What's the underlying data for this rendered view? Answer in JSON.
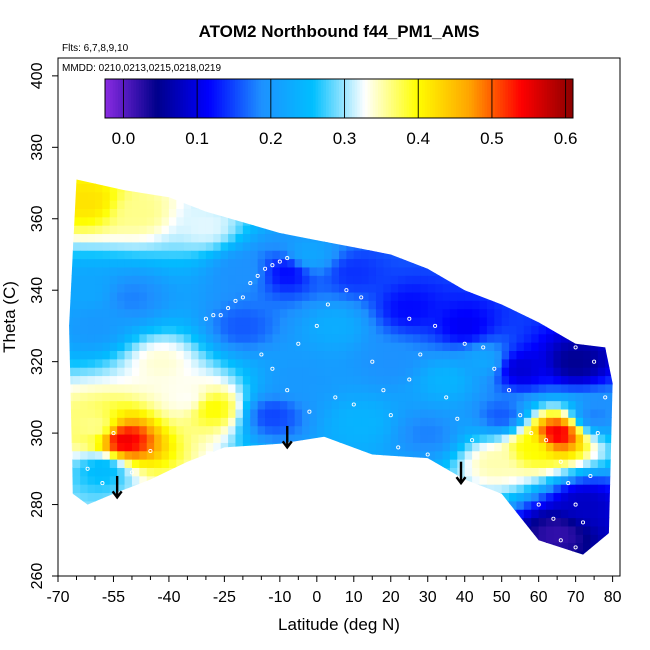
{
  "chart_data": {
    "type": "heatmap",
    "title": "ATOM2 Northbound f44_PM1_AMS",
    "annotations": [
      "Flts: 6,7,8,9,10",
      "MMDD: 0210,0213,0215,0218,0219"
    ],
    "xlabel": "Latitude (deg N)",
    "ylabel": "Theta (C)",
    "xlim": [
      -70,
      82
    ],
    "ylim": [
      260,
      405
    ],
    "x_ticks": [
      "-70",
      "-55",
      "-40",
      "-25",
      "-10",
      "0",
      "10",
      "20",
      "30",
      "40",
      "50",
      "60",
      "70",
      "80"
    ],
    "x_tick_values": [
      -70,
      -55,
      -40,
      -25,
      -10,
      0,
      10,
      20,
      30,
      40,
      50,
      60,
      70,
      80
    ],
    "y_ticks": [
      "260",
      "280",
      "300",
      "320",
      "340",
      "360",
      "380",
      "400"
    ],
    "y_tick_values": [
      260,
      280,
      300,
      320,
      340,
      360,
      380,
      400
    ],
    "colorbar": {
      "range": [
        -0.025,
        0.61
      ],
      "ticks": [
        "0.0",
        "0.1",
        "0.2",
        "0.3",
        "0.4",
        "0.5",
        "0.6"
      ],
      "tick_values": [
        0,
        0.1,
        0.2,
        0.3,
        0.4,
        0.5,
        0.6
      ],
      "colors": [
        "#8a2be2",
        "#00008b",
        "#0000ff",
        "#1e90ff",
        "#00bfff",
        "#ffffff",
        "#ffff00",
        "#ffa500",
        "#ff0000",
        "#8b0000"
      ]
    },
    "domain_outline": [
      [
        -65,
        371
      ],
      [
        -52,
        368
      ],
      [
        -40,
        366
      ],
      [
        -30,
        362
      ],
      [
        -20,
        359
      ],
      [
        -10,
        356
      ],
      [
        0,
        354
      ],
      [
        10,
        352
      ],
      [
        20,
        350
      ],
      [
        30,
        346
      ],
      [
        40,
        340
      ],
      [
        50,
        336
      ],
      [
        60,
        331
      ],
      [
        70,
        325
      ],
      [
        78,
        324
      ],
      [
        80,
        314
      ],
      [
        79,
        272
      ],
      [
        72,
        266
      ],
      [
        60,
        270
      ],
      [
        50,
        283
      ],
      [
        40,
        287
      ],
      [
        30,
        293
      ],
      [
        15,
        294
      ],
      [
        2,
        299
      ],
      [
        -10,
        297
      ],
      [
        -25,
        296
      ],
      [
        -35,
        292
      ],
      [
        -45,
        287
      ],
      [
        -55,
        283
      ],
      [
        -62,
        280
      ],
      [
        -66,
        283
      ],
      [
        -67,
        330
      ]
    ],
    "field_points": [
      {
        "lat": -62,
        "theta": 365,
        "value": 0.42
      },
      {
        "lat": -48,
        "theta": 362,
        "value": 0.36
      },
      {
        "lat": -30,
        "theta": 358,
        "value": 0.32
      },
      {
        "lat": -62,
        "theta": 340,
        "value": 0.22
      },
      {
        "lat": -50,
        "theta": 338,
        "value": 0.18
      },
      {
        "lat": -60,
        "theta": 330,
        "value": 0.2
      },
      {
        "lat": -42,
        "theta": 320,
        "value": 0.34
      },
      {
        "lat": -35,
        "theta": 310,
        "value": 0.33
      },
      {
        "lat": -28,
        "theta": 307,
        "value": 0.4
      },
      {
        "lat": -52,
        "theta": 298,
        "value": 0.55
      },
      {
        "lat": -60,
        "theta": 302,
        "value": 0.36
      },
      {
        "lat": -58,
        "theta": 290,
        "value": 0.25
      },
      {
        "lat": -20,
        "theta": 330,
        "value": 0.16
      },
      {
        "lat": -8,
        "theta": 345,
        "value": 0.12
      },
      {
        "lat": -5,
        "theta": 315,
        "value": 0.2
      },
      {
        "lat": -12,
        "theta": 305,
        "value": 0.15
      },
      {
        "lat": 5,
        "theta": 330,
        "value": 0.23
      },
      {
        "lat": 10,
        "theta": 345,
        "value": 0.14
      },
      {
        "lat": 20,
        "theta": 320,
        "value": 0.19
      },
      {
        "lat": 25,
        "theta": 335,
        "value": 0.12
      },
      {
        "lat": 35,
        "theta": 315,
        "value": 0.24
      },
      {
        "lat": 30,
        "theta": 300,
        "value": 0.18
      },
      {
        "lat": 40,
        "theta": 330,
        "value": 0.11
      },
      {
        "lat": 45,
        "theta": 320,
        "value": 0.22
      },
      {
        "lat": 50,
        "theta": 305,
        "value": 0.16
      },
      {
        "lat": 55,
        "theta": 318,
        "value": 0.09
      },
      {
        "lat": 65,
        "theta": 300,
        "value": 0.55
      },
      {
        "lat": 58,
        "theta": 296,
        "value": 0.4
      },
      {
        "lat": 70,
        "theta": 320,
        "value": 0.05
      },
      {
        "lat": 75,
        "theta": 305,
        "value": 0.18
      },
      {
        "lat": 72,
        "theta": 280,
        "value": 0.08
      },
      {
        "lat": 65,
        "theta": 272,
        "value": 0.02
      },
      {
        "lat": 12,
        "theta": 303,
        "value": 0.24
      },
      {
        "lat": -20,
        "theta": 345,
        "value": 0.19
      },
      {
        "lat": 48,
        "theta": 292,
        "value": 0.35
      },
      {
        "lat": -2,
        "theta": 350,
        "value": 0.22
      }
    ],
    "sample_points": [
      [
        -20,
        338
      ],
      [
        -18,
        342
      ],
      [
        -16,
        344
      ],
      [
        -14,
        346
      ],
      [
        -12,
        347
      ],
      [
        -10,
        348
      ],
      [
        -8,
        349
      ],
      [
        -26,
        333
      ],
      [
        -24,
        335
      ],
      [
        -22,
        337
      ],
      [
        -30,
        332
      ],
      [
        -28,
        333
      ],
      [
        -15,
        322
      ],
      [
        -12,
        318
      ],
      [
        -5,
        325
      ],
      [
        0,
        330
      ],
      [
        3,
        336
      ],
      [
        8,
        340
      ],
      [
        12,
        338
      ],
      [
        15,
        320
      ],
      [
        18,
        312
      ],
      [
        20,
        305
      ],
      [
        25,
        315
      ],
      [
        28,
        322
      ],
      [
        32,
        330
      ],
      [
        35,
        310
      ],
      [
        38,
        304
      ],
      [
        42,
        298
      ],
      [
        45,
        324
      ],
      [
        48,
        318
      ],
      [
        52,
        312
      ],
      [
        55,
        305
      ],
      [
        58,
        300
      ],
      [
        62,
        298
      ],
      [
        66,
        292
      ],
      [
        68,
        286
      ],
      [
        70,
        280
      ],
      [
        72,
        275
      ],
      [
        74,
        288
      ],
      [
        76,
        300
      ],
      [
        78,
        310
      ],
      [
        75,
        320
      ],
      [
        70,
        324
      ],
      [
        -55,
        300
      ],
      [
        -50,
        289
      ],
      [
        -58,
        286
      ],
      [
        -62,
        290
      ],
      [
        -45,
        295
      ],
      [
        5,
        310
      ],
      [
        10,
        308
      ],
      [
        -2,
        306
      ],
      [
        -8,
        312
      ],
      [
        22,
        296
      ],
      [
        30,
        294
      ],
      [
        60,
        280
      ],
      [
        64,
        276
      ],
      [
        66,
        270
      ],
      [
        70,
        268
      ],
      [
        40,
        325
      ],
      [
        25,
        332
      ]
    ],
    "arrows": [
      {
        "lat": -54,
        "theta_top": 288,
        "theta_bottom": 282
      },
      {
        "lat": -8,
        "theta_top": 302,
        "theta_bottom": 296
      },
      {
        "lat": 39,
        "theta_top": 292,
        "theta_bottom": 286
      }
    ]
  }
}
